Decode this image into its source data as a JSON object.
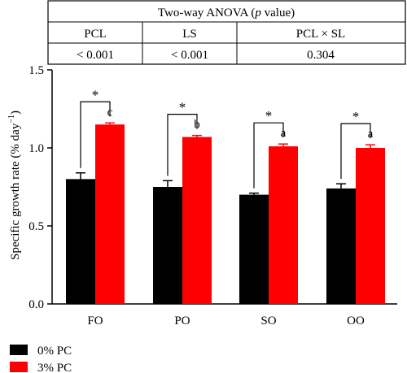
{
  "anova_table": {
    "title_prefix": "Two-way ANOVA (",
    "title_italic": "p",
    "title_suffix": " value)",
    "headers": [
      "PCL",
      "LS",
      "PCL × SL"
    ],
    "values": [
      "< 0.001",
      "< 0.001",
      "0.304"
    ]
  },
  "chart_data": {
    "type": "bar",
    "categories": [
      "FO",
      "PO",
      "SO",
      "OO"
    ],
    "series": [
      {
        "name": "0% PC",
        "color": "#000000",
        "values": [
          0.8,
          0.75,
          0.7,
          0.74
        ],
        "errors": [
          0.04,
          0.04,
          0.01,
          0.03
        ]
      },
      {
        "name": "3% PC",
        "color": "#ff0000",
        "values": [
          1.15,
          1.07,
          1.01,
          1.0
        ],
        "errors": [
          0.01,
          0.01,
          0.015,
          0.02
        ]
      }
    ],
    "significance_letters": [
      "c",
      "b",
      "a",
      "a"
    ],
    "pair_marker": "*",
    "ylabel_main": "Specific growth rate (% day",
    "ylabel_exponent": "−1",
    "ylabel_close": ")",
    "ylim": [
      0,
      1.5
    ],
    "yticks": [
      "0.0",
      "0.5",
      "1.0",
      "1.5"
    ],
    "legend_position": "bottom-left"
  }
}
